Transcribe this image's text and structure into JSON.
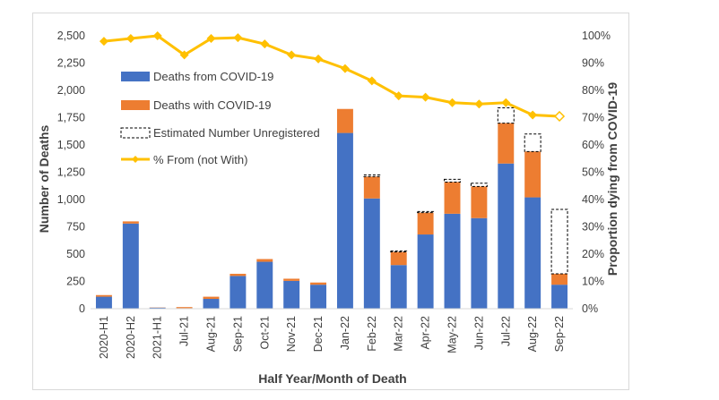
{
  "chart_data": {
    "type": "bar",
    "categories": [
      "2020-H1",
      "2020-H2",
      "2021-H1",
      "Jul-21",
      "Aug-21",
      "Sep-21",
      "Oct-21",
      "Nov-21",
      "Dec-21",
      "Jan-22",
      "Feb-22",
      "Mar-22",
      "Apr-22",
      "May-22",
      "Jun-22",
      "Jul-22",
      "Aug-22",
      "Sep-22"
    ],
    "series": [
      {
        "name": "Deaths from COVID-19",
        "kind": "stacked-bar",
        "color": "#4472c4",
        "values": [
          110,
          780,
          10,
          5,
          90,
          300,
          430,
          255,
          220,
          1610,
          1010,
          400,
          680,
          870,
          830,
          1330,
          1020,
          220
        ]
      },
      {
        "name": "Deaths with COVID-19",
        "kind": "stacked-bar",
        "color": "#ed7d31",
        "values": [
          15,
          20,
          2,
          10,
          20,
          20,
          25,
          20,
          20,
          220,
          200,
          120,
          200,
          290,
          290,
          370,
          420,
          100
        ]
      },
      {
        "name": "Estimated Number Unregistered",
        "kind": "stacked-bar-dashed-outline",
        "color": "#000000",
        "values": [
          0,
          0,
          0,
          0,
          0,
          0,
          0,
          0,
          0,
          0,
          15,
          10,
          10,
          25,
          30,
          140,
          160,
          590
        ]
      },
      {
        "name": "% From (not With)",
        "kind": "line",
        "axis": "right",
        "color": "#ffc000",
        "values": [
          98,
          99,
          100,
          93,
          99,
          99.3,
          97,
          93,
          91.5,
          88,
          83.5,
          78,
          77.5,
          75.5,
          75,
          75.5,
          71,
          70.5
        ],
        "last_point_hollow": true
      }
    ],
    "xlabel": "Half Year/Month of Death",
    "ylabel": "Number of Deaths",
    "ylabel_right": "Proportion dying from COVID-19",
    "ylim": [
      0,
      2500
    ],
    "yticks": [
      "0",
      "250",
      "500",
      "750",
      "1,000",
      "1,250",
      "1,500",
      "1,750",
      "2,000",
      "2,250",
      "2,500"
    ],
    "ylim_right": [
      0,
      100
    ],
    "yticks_right": [
      "0%",
      "10%",
      "20%",
      "30%",
      "40%",
      "50%",
      "60%",
      "70%",
      "80%",
      "90%",
      "100%"
    ],
    "grid": false,
    "legend_position": "upper-left inside"
  }
}
